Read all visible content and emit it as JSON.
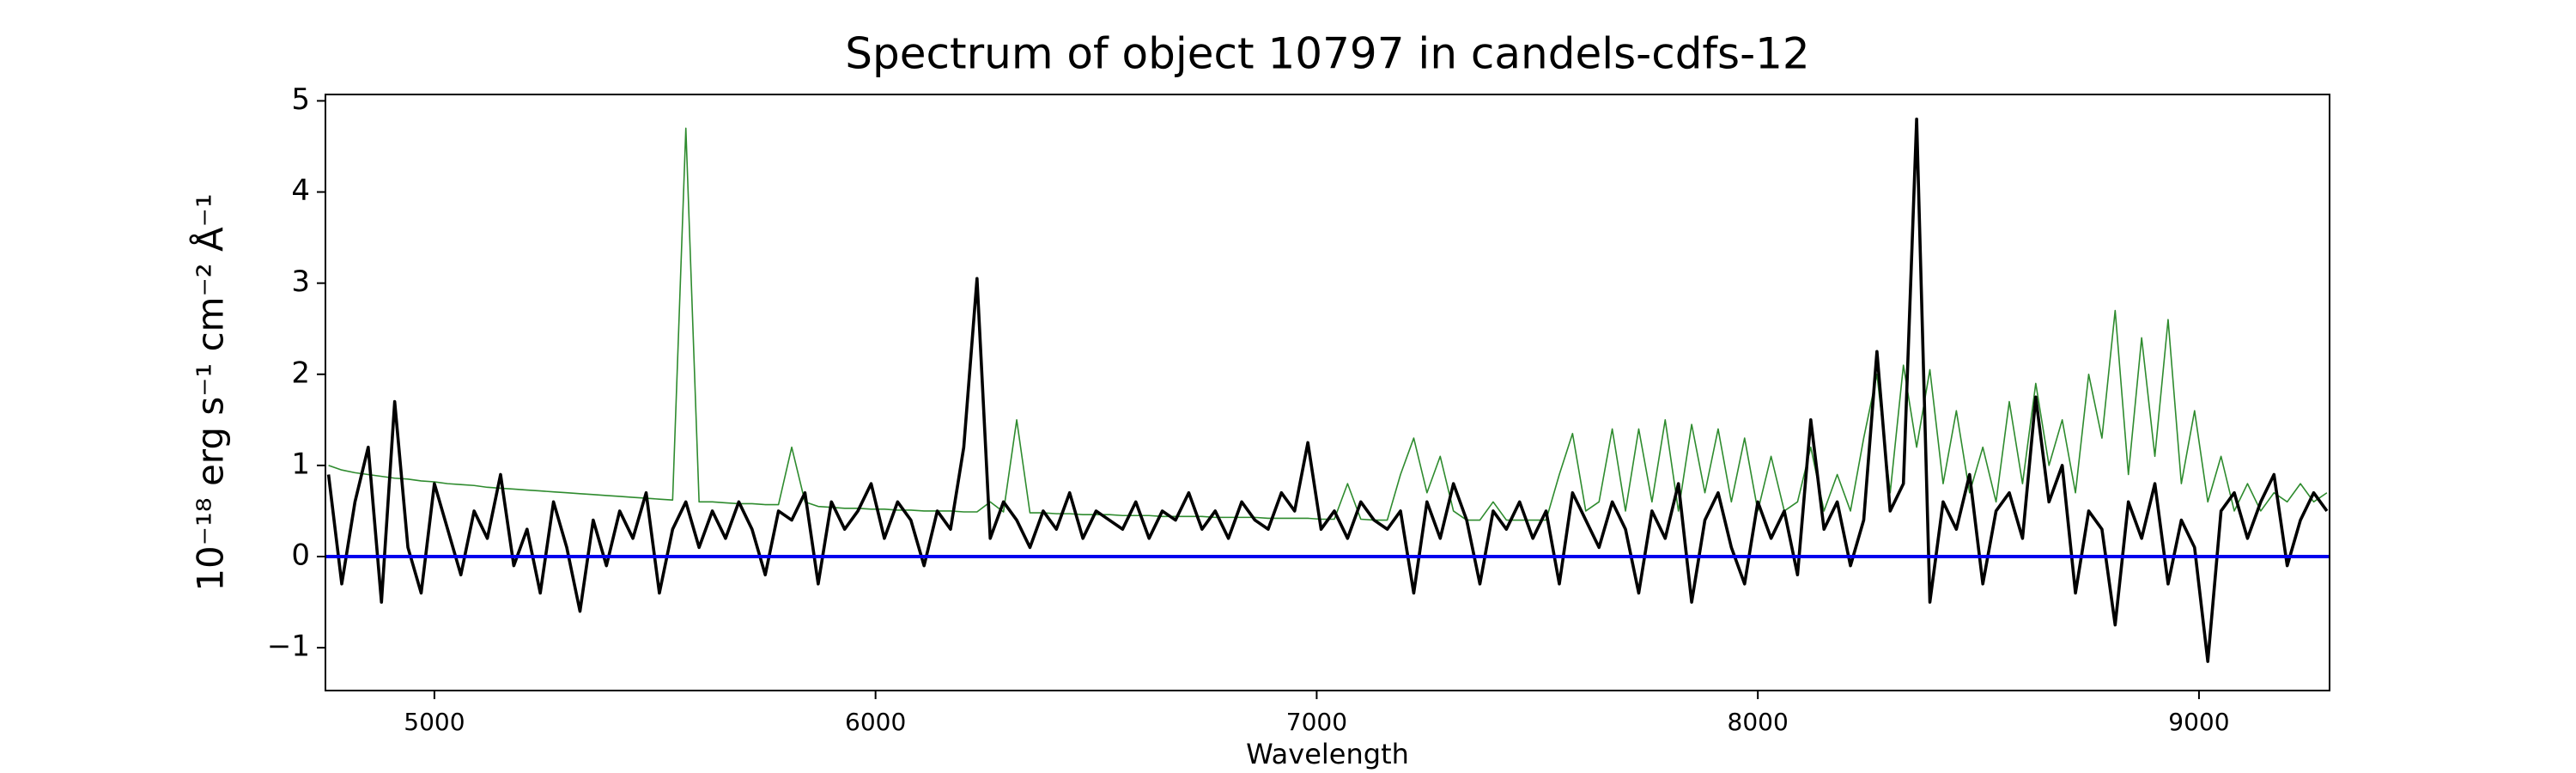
{
  "chart_data": {
    "type": "line",
    "title": "Spectrum of object 10797 in candels-cdfs-12",
    "x_label": "Wavelength",
    "y_label": "10⁻¹⁸ erg s⁻¹ cm⁻² Å⁻¹",
    "x": [
      4760,
      4790,
      4820,
      4850,
      4880,
      4910,
      4940,
      4970,
      5000,
      5030,
      5060,
      5090,
      5120,
      5150,
      5180,
      5210,
      5240,
      5270,
      5300,
      5330,
      5360,
      5390,
      5420,
      5450,
      5480,
      5510,
      5540,
      5570,
      5600,
      5630,
      5660,
      5690,
      5720,
      5750,
      5780,
      5810,
      5840,
      5870,
      5900,
      5930,
      5960,
      5990,
      6020,
      6050,
      6080,
      6110,
      6140,
      6170,
      6200,
      6230,
      6260,
      6290,
      6320,
      6350,
      6380,
      6410,
      6440,
      6470,
      6500,
      6530,
      6560,
      6590,
      6620,
      6650,
      6680,
      6710,
      6740,
      6770,
      6800,
      6830,
      6860,
      6890,
      6920,
      6950,
      6980,
      7010,
      7040,
      7070,
      7100,
      7130,
      7160,
      7190,
      7220,
      7250,
      7280,
      7310,
      7340,
      7370,
      7400,
      7430,
      7460,
      7490,
      7520,
      7550,
      7580,
      7610,
      7640,
      7670,
      7700,
      7730,
      7760,
      7790,
      7820,
      7850,
      7880,
      7910,
      7940,
      7970,
      8000,
      8030,
      8060,
      8090,
      8120,
      8150,
      8180,
      8210,
      8240,
      8270,
      8300,
      8330,
      8360,
      8390,
      8420,
      8450,
      8480,
      8510,
      8540,
      8570,
      8600,
      8630,
      8660,
      8690,
      8720,
      8750,
      8780,
      8810,
      8840,
      8870,
      8900,
      8930,
      8960,
      8990,
      9020,
      9050,
      9080,
      9110,
      9140,
      9170,
      9200,
      9230,
      9260,
      9290
    ],
    "series": [
      {
        "color": "#2e8b2e",
        "values": [
          1.0,
          0.95,
          0.92,
          0.9,
          0.88,
          0.86,
          0.85,
          0.83,
          0.82,
          0.8,
          0.79,
          0.78,
          0.76,
          0.75,
          0.74,
          0.73,
          0.72,
          0.71,
          0.7,
          0.69,
          0.68,
          0.67,
          0.66,
          0.65,
          0.64,
          0.63,
          0.62,
          4.7,
          0.6,
          0.6,
          0.59,
          0.58,
          0.58,
          0.57,
          0.57,
          1.2,
          0.6,
          0.55,
          0.54,
          0.53,
          0.53,
          0.52,
          0.52,
          0.51,
          0.51,
          0.5,
          0.5,
          0.5,
          0.49,
          0.49,
          0.6,
          0.49,
          1.5,
          0.48,
          0.48,
          0.47,
          0.47,
          0.46,
          0.46,
          0.46,
          0.45,
          0.45,
          0.45,
          0.44,
          0.44,
          0.44,
          0.44,
          0.43,
          0.43,
          0.43,
          0.43,
          0.42,
          0.42,
          0.42,
          0.42,
          0.41,
          0.41,
          0.8,
          0.41,
          0.4,
          0.4,
          0.9,
          1.3,
          0.7,
          1.1,
          0.5,
          0.4,
          0.4,
          0.6,
          0.4,
          0.4,
          0.4,
          0.4,
          0.9,
          1.35,
          0.5,
          0.6,
          1.4,
          0.5,
          1.4,
          0.6,
          1.5,
          0.5,
          1.45,
          0.7,
          1.4,
          0.6,
          1.3,
          0.5,
          1.1,
          0.5,
          0.6,
          1.2,
          0.5,
          0.9,
          0.5,
          1.3,
          2.0,
          0.7,
          2.1,
          1.2,
          2.05,
          0.8,
          1.6,
          0.7,
          1.2,
          0.6,
          1.7,
          0.8,
          1.9,
          1.0,
          1.5,
          0.7,
          2.0,
          1.3,
          2.7,
          0.9,
          2.4,
          1.1,
          2.6,
          0.8,
          1.6,
          0.6,
          1.1,
          0.5,
          0.8,
          0.5,
          0.7,
          0.6,
          0.8,
          0.6,
          0.7
        ]
      },
      {
        "color": "#000000",
        "values": [
          0.9,
          -0.3,
          0.6,
          1.2,
          -0.5,
          1.7,
          0.1,
          -0.4,
          0.8,
          0.3,
          -0.2,
          0.5,
          0.2,
          0.9,
          -0.1,
          0.3,
          -0.4,
          0.6,
          0.1,
          -0.6,
          0.4,
          -0.1,
          0.5,
          0.2,
          0.7,
          -0.4,
          0.3,
          0.6,
          0.1,
          0.5,
          0.2,
          0.6,
          0.3,
          -0.2,
          0.5,
          0.4,
          0.7,
          -0.3,
          0.6,
          0.3,
          0.5,
          0.8,
          0.2,
          0.6,
          0.4,
          -0.1,
          0.5,
          0.3,
          1.2,
          3.05,
          0.2,
          0.6,
          0.4,
          0.1,
          0.5,
          0.3,
          0.7,
          0.2,
          0.5,
          0.4,
          0.3,
          0.6,
          0.2,
          0.5,
          0.4,
          0.7,
          0.3,
          0.5,
          0.2,
          0.6,
          0.4,
          0.3,
          0.7,
          0.5,
          1.25,
          0.3,
          0.5,
          0.2,
          0.6,
          0.4,
          0.3,
          0.5,
          -0.4,
          0.6,
          0.2,
          0.8,
          0.4,
          -0.3,
          0.5,
          0.3,
          0.6,
          0.2,
          0.5,
          -0.3,
          0.7,
          0.4,
          0.1,
          0.6,
          0.3,
          -0.4,
          0.5,
          0.2,
          0.8,
          -0.5,
          0.4,
          0.7,
          0.1,
          -0.3,
          0.6,
          0.2,
          0.5,
          -0.2,
          1.5,
          0.3,
          0.6,
          -0.1,
          0.4,
          2.25,
          0.5,
          0.8,
          4.8,
          -0.5,
          0.6,
          0.3,
          0.9,
          -0.3,
          0.5,
          0.7,
          0.2,
          1.75,
          0.6,
          1.0,
          -0.4,
          0.5,
          0.3,
          -0.75,
          0.6,
          0.2,
          0.8,
          -0.3,
          0.4,
          0.1,
          -1.15,
          0.5,
          0.7,
          0.2,
          0.6,
          0.9,
          -0.1,
          0.4,
          0.7,
          0.5
        ]
      }
    ],
    "zero_line": {
      "value": 0,
      "color": "#0000ee"
    },
    "xlim": [
      4753,
      9296
    ],
    "ylim": [
      -1.47,
      5.07
    ],
    "xticks": [
      5000,
      6000,
      7000,
      8000,
      9000
    ],
    "yticks": [
      {
        "value": -1,
        "label": "−1"
      },
      0,
      1,
      2,
      3,
      4,
      5
    ]
  }
}
